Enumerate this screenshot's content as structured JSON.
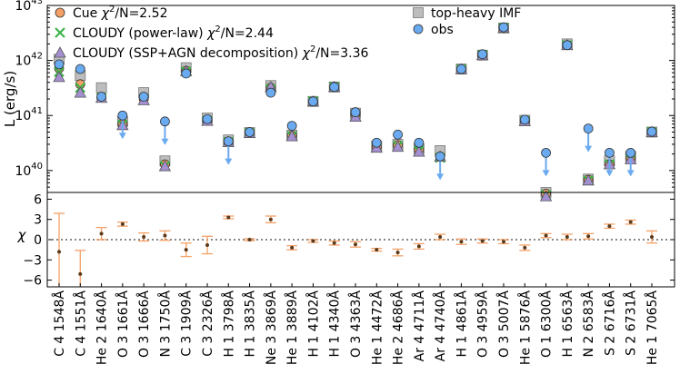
{
  "chart_data": [
    {
      "type": "scatter",
      "title": "",
      "xlabel": "",
      "ylabel": "L (erg/s)",
      "yscale": "log",
      "ylim": [
        4e+39,
        1e+43
      ],
      "yticks": [
        {
          "value": 1e+40,
          "base": "10",
          "exp": "40"
        },
        {
          "value": 1e+41,
          "base": "10",
          "exp": "41"
        },
        {
          "value": 1e+42,
          "base": "10",
          "exp": "42"
        },
        {
          "value": 1e+43,
          "base": "10",
          "exp": "43"
        }
      ],
      "categories": [
        "C 4 1548Å",
        "C 4 1551Å",
        "He 2 1640Å",
        "O 3 1661Å",
        "O 3 1666Å",
        "N 3 1750Å",
        "C 3 1909Å",
        "C 3 2326Å",
        "H 1 3798Å",
        "H 1 3835Å",
        "Ne 3 3869Å",
        "He 1 3889Å",
        "H 1 4102Å",
        "H 1 4340Å",
        "O 3 4363Å",
        "He 1 4472Å",
        "He 2 4686Å",
        "Ar 4 4711Å",
        "Ar 4 4740Å",
        "H 1 4861Å",
        "O 3 4959Å",
        "O 3 5007Å",
        "He 1 5876Å",
        "O 1 6300Å",
        "H 1 6563Å",
        "N 2 6583Å",
        "S 2 6716Å",
        "S 2 6731Å",
        "He 1 7065Å"
      ],
      "series": [
        {
          "name": "top-heavy IMF",
          "marker": "square",
          "color": "#bdbdbd",
          "values": [
            1.05e+42,
            5.3e+41,
            3.2e+41,
            7.8e+40,
            2.6e+41,
            1.5e+40,
            7.4e+41,
            9e+40,
            3.6e+40,
            4.9e+40,
            3.5e+41,
            4.4e+40,
            1.8e+41,
            3.3e+41,
            1.1e+41,
            2.8e+40,
            3e+40,
            2.5e+40,
            2.3e+40,
            7e+41,
            1.25e+42,
            3.9e+42,
            8.2e+40,
            4e+39,
            2e+42,
            7e+39,
            1.5e+40,
            1.8e+40,
            5e+40
          ]
        },
        {
          "name": "Cue",
          "label_prefix": "Cue ",
          "chi2": "2.52",
          "marker": "circle",
          "color": "#f5a067",
          "values": [
            7.2e+41,
            3.7e+41,
            2.1e+41,
            7e+40,
            2e+41,
            1.3e+40,
            6.5e+41,
            8.2e+40,
            3.3e+40,
            4.8e+40,
            3.2e+41,
            4.3e+40,
            1.8e+41,
            3.3e+41,
            1.05e+41,
            2.7e+40,
            2.9e+40,
            2.4e+40,
            1.8e+40,
            6.9e+41,
            1.25e+42,
            3.9e+42,
            8e+40,
            3.8e+39,
            1.9e+42,
            6.8e+39,
            1.3e+40,
            1.7e+40,
            5e+40
          ]
        },
        {
          "name": "CLOUDY (power-law)",
          "label_prefix": "CLOUDY (power-law) ",
          "chi2": "2.44",
          "marker": "x",
          "color": "#3cb44b",
          "values": [
            6.2e+41,
            3.2e+41,
            2.1e+41,
            6.8e+40,
            1.9e+41,
            1.2e+40,
            6.3e+41,
            8e+40,
            3.3e+40,
            4.8e+40,
            3e+41,
            4.2e+40,
            1.8e+41,
            3.3e+41,
            1e+41,
            2.6e+40,
            2.8e+40,
            2.3e+40,
            1.7e+40,
            6.9e+41,
            1.25e+42,
            3.9e+42,
            7.9e+40,
            3.6e+39,
            1.9e+42,
            6.6e+39,
            1.3e+40,
            1.6e+40,
            5e+40
          ]
        },
        {
          "name": "CLOUDY (SSP+AGN decomposition)",
          "label_prefix": "CLOUDY (SSP+AGN decomposition) ",
          "chi2": "3.36",
          "marker": "triangle",
          "color": "#a48fd0",
          "values": [
            5e+41,
            2.6e+41,
            2.1e+41,
            6.7e+40,
            1.9e+41,
            1.2e+40,
            6.4e+41,
            8e+40,
            3.3e+40,
            4.8e+40,
            3.3e+41,
            4.2e+40,
            1.8e+41,
            3.3e+41,
            9.5e+40,
            2.6e+40,
            2.7e+40,
            2.2e+40,
            1.8e+40,
            6.9e+41,
            1.25e+42,
            3.9e+42,
            7.9e+40,
            3.4e+39,
            1.9e+42,
            6.6e+39,
            1.3e+40,
            1.6e+40,
            5e+40
          ]
        },
        {
          "name": "obs",
          "marker": "circle",
          "color": "#6aaaf0",
          "upper_limit_color": "#6aaaf0",
          "values": [
            8.5e+41,
            7e+41,
            2.2e+41,
            1e+41,
            2.2e+41,
            7.8e+40,
            5.8e+41,
            8.6e+40,
            3.4e+40,
            5e+40,
            2.6e+41,
            6.5e+40,
            1.8e+41,
            3.3e+41,
            1.15e+41,
            3.2e+40,
            4.5e+40,
            3.2e+40,
            1.8e+40,
            7e+41,
            1.3e+42,
            4e+42,
            8.4e+40,
            2.1e+40,
            1.9e+42,
            5.8e+40,
            2.1e+40,
            2.1e+40,
            5.1e+40
          ],
          "upper_limit": [
            false,
            false,
            false,
            true,
            false,
            true,
            false,
            false,
            true,
            false,
            false,
            false,
            false,
            false,
            false,
            false,
            false,
            false,
            true,
            false,
            false,
            false,
            false,
            true,
            false,
            true,
            true,
            true,
            false
          ]
        }
      ],
      "legend": "top",
      "chi_label": "χ²/N="
    },
    {
      "type": "errorbar",
      "xlabel": "",
      "ylabel": "χ",
      "ylim": [
        -7,
        7
      ],
      "yticks": [
        "6",
        "3",
        "0",
        "-3",
        "-6"
      ],
      "reference_line": 0,
      "values": [
        -1.8,
        -5.1,
        0.9,
        2.3,
        0.4,
        0.6,
        -1.5,
        -0.8,
        3.3,
        0.0,
        3.0,
        -1.2,
        -0.2,
        -0.5,
        -0.7,
        -1.5,
        -1.9,
        -1.0,
        0.4,
        -0.3,
        -0.2,
        -0.3,
        -1.2,
        0.6,
        0.4,
        0.5,
        2.0,
        2.6,
        0.4
      ],
      "errors": [
        5.7,
        3.5,
        0.9,
        0.3,
        0.6,
        0.7,
        1.0,
        1.3,
        0.2,
        0.15,
        0.5,
        0.3,
        0.2,
        0.3,
        0.4,
        0.2,
        0.5,
        0.4,
        0.4,
        0.4,
        0.3,
        0.3,
        0.4,
        0.3,
        0.4,
        0.4,
        0.3,
        0.3,
        0.9
      ],
      "color": "#f5a067"
    }
  ]
}
